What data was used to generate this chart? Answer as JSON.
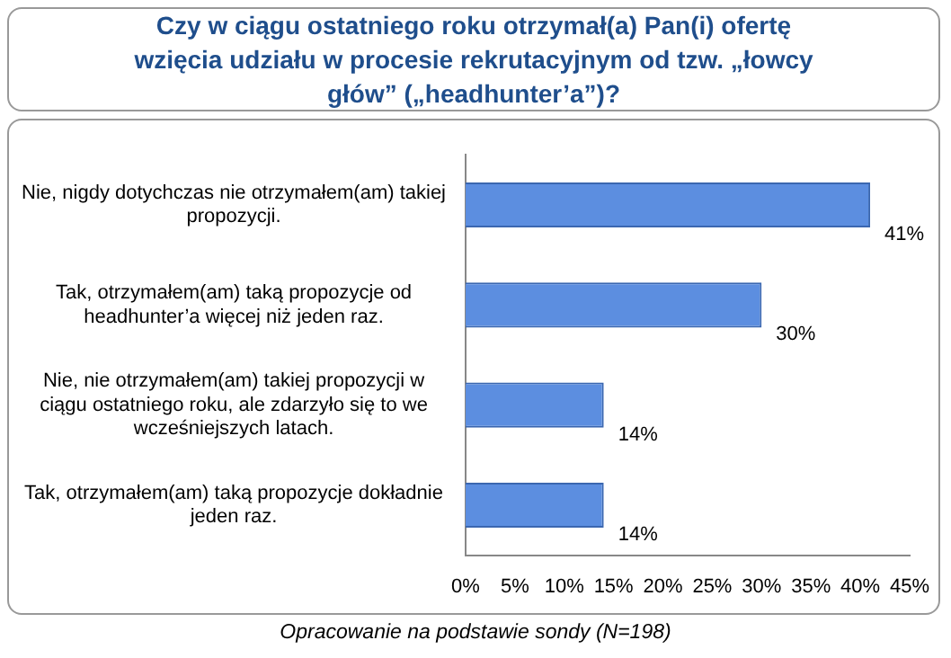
{
  "chart_data": {
    "type": "bar",
    "orientation": "horizontal",
    "title": "Czy w ciągu ostatniego roku otrzymał(a) Pan(i) ofertę wzięcia udziału w procesie rekrutacyjnym od tzw. „łowcy głów” („headhunter’a”)?",
    "categories": [
      "Nie, nigdy dotychczas nie otrzymałem(am) takiej propozycji.",
      "Tak, otrzymałem(am) taką propozycje od headhunter’a więcej niż jeden raz.",
      "Nie, nie otrzymałem(am) takiej propozycji w ciągu ostatniego roku, ale zdarzyło się to we wcześniejszych latach.",
      "Tak, otrzymałem(am) taką propozycje dokładnie jeden raz."
    ],
    "values": [
      41,
      30,
      14,
      14
    ],
    "color": "#5c8ee0",
    "value_labels": [
      "41%",
      "30%",
      "14%",
      "14%"
    ],
    "xlim": [
      0,
      45
    ],
    "xticks": [
      {
        "value": 0,
        "label": "0%"
      },
      {
        "value": 5,
        "label": "5%"
      },
      {
        "value": 10,
        "label": "10%"
      },
      {
        "value": 15,
        "label": "15%"
      },
      {
        "value": 20,
        "label": "20%"
      },
      {
        "value": 25,
        "label": "25%"
      },
      {
        "value": 30,
        "label": "30%"
      },
      {
        "value": 35,
        "label": "35%"
      },
      {
        "value": 40,
        "label": "40%"
      },
      {
        "value": 45,
        "label": "45%"
      }
    ],
    "grid": false,
    "legend": false,
    "annotations": [
      "Opracowanie na podstawie sondy (N=198)"
    ]
  }
}
